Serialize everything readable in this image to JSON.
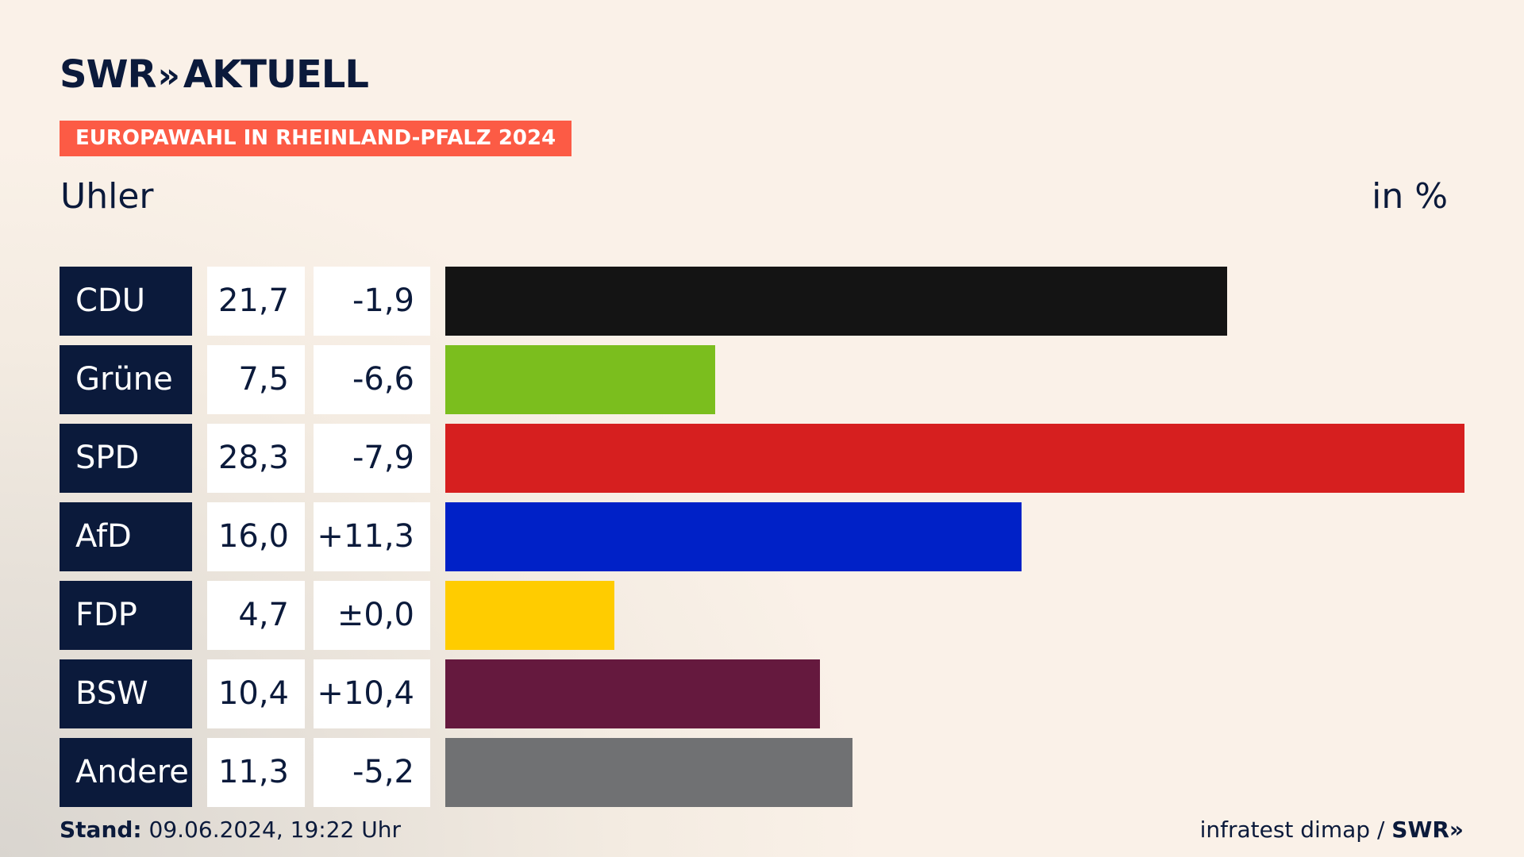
{
  "brand": {
    "name": "SWR",
    "chevrons": "»",
    "product": "AKTUELL"
  },
  "tag": "EUROPAWAHL IN RHEINLAND-PFALZ 2024",
  "region": "Uhler",
  "unit_label": "in %",
  "footer": {
    "stand_label": "Stand:",
    "stand_value": "09.06.2024, 19:22 Uhr",
    "source": "infratest dimap",
    "separator": "/",
    "source_brand": "SWR»"
  },
  "chart_data": {
    "type": "bar",
    "orientation": "horizontal",
    "title": "Europawahl in Rheinland-Pfalz 2024 – Uhler",
    "unit": "%",
    "xlim": [
      0,
      28.3
    ],
    "categories": [
      "CDU",
      "Grüne",
      "SPD",
      "AfD",
      "FDP",
      "BSW",
      "Andere"
    ],
    "values": [
      21.7,
      7.5,
      28.3,
      16.0,
      4.7,
      10.4,
      11.3
    ],
    "value_labels": [
      "21,7",
      "7,5",
      "28,3",
      "16,0",
      "4,7",
      "10,4",
      "11,3"
    ],
    "diff_labels": [
      "-1,9",
      "-6,6",
      "-7,9",
      "+11,3",
      "±0,0",
      "+10,4",
      "-5,2"
    ],
    "colors": [
      "#141414",
      "#7bbe1e",
      "#d61f1f",
      "#0021c7",
      "#ffcc00",
      "#65193e",
      "#707173"
    ]
  }
}
